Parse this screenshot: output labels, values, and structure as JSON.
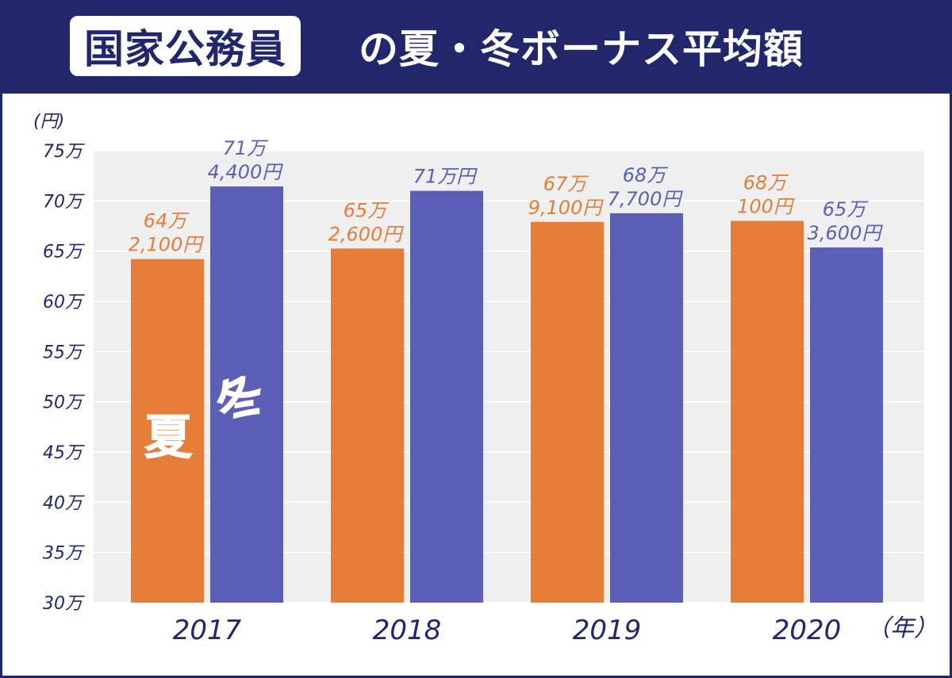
{
  "header": {
    "title_highlight": "国家公務員",
    "title_rest": "の夏・冬ボーナス平均額"
  },
  "colors": {
    "header_bg": "#22266b",
    "summer": "#e67e3a",
    "winter": "#5b5fb8",
    "plot_bg": "#efefef"
  },
  "chart_data": {
    "type": "bar",
    "categories": [
      "2017",
      "2018",
      "2019",
      "2020"
    ],
    "series": [
      {
        "key": "summer",
        "name": "夏",
        "values": [
          642100,
          652600,
          679100,
          680100
        ],
        "labels": [
          [
            "64万",
            "2,100円"
          ],
          [
            "65万",
            "2,600円"
          ],
          [
            "67万",
            "9,100円"
          ],
          [
            "68万",
            "100円"
          ]
        ]
      },
      {
        "key": "winter",
        "name": "冬",
        "values": [
          714400,
          710000,
          687700,
          653600
        ],
        "labels": [
          [
            "71万",
            "4,400円"
          ],
          [
            "71万円"
          ],
          [
            "68万",
            "7,700円"
          ],
          [
            "65万",
            "3,600円"
          ]
        ]
      }
    ],
    "ylim": [
      300000,
      750000
    ],
    "yticks": [
      300000,
      350000,
      400000,
      450000,
      500000,
      550000,
      600000,
      650000,
      700000,
      750000
    ],
    "ytick_labels": [
      "30万",
      "35万",
      "40万",
      "45万",
      "50万",
      "55万",
      "60万",
      "65万",
      "70万",
      "75万"
    ],
    "ylabel": "(円)",
    "xlabel": "（年）",
    "grid": true
  }
}
